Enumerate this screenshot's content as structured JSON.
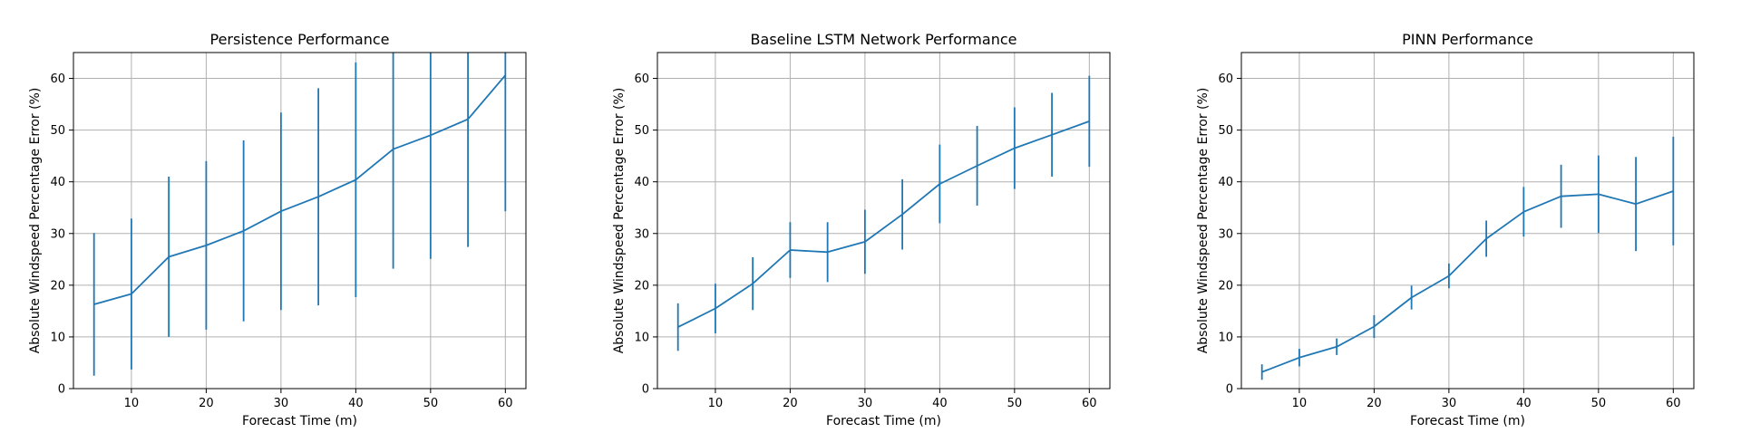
{
  "chart_data": [
    {
      "type": "line",
      "title": "Persistence Performance",
      "xlabel": "Forecast Time (m)",
      "ylabel": "Absolute Windspeed Percentage Error (%)",
      "xlim": [
        2.25,
        62.75
      ],
      "ylim": [
        0,
        65
      ],
      "xticks": [
        10,
        20,
        30,
        40,
        50,
        60
      ],
      "yticks": [
        0,
        10,
        20,
        30,
        40,
        50,
        60
      ],
      "grid": true,
      "x": [
        5,
        10,
        15,
        20,
        25,
        30,
        35,
        40,
        45,
        50,
        55,
        60
      ],
      "y": [
        16.3,
        18.3,
        25.5,
        27.7,
        30.5,
        34.3,
        37.1,
        40.4,
        46.3,
        49.0,
        52.1,
        60.6
      ],
      "yerr": [
        13.8,
        14.6,
        15.5,
        16.3,
        17.5,
        19.1,
        21.0,
        22.7,
        23.1,
        23.9,
        24.7,
        26.3
      ]
    },
    {
      "type": "line",
      "title": "Baseline LSTM Network Performance",
      "xlabel": "Forecast Time (m)",
      "ylabel": "Absolute Windspeed Percentage Error (%)",
      "xlim": [
        2.25,
        62.75
      ],
      "ylim": [
        0,
        65
      ],
      "xticks": [
        10,
        20,
        30,
        40,
        50,
        60
      ],
      "yticks": [
        0,
        10,
        20,
        30,
        40,
        50,
        60
      ],
      "grid": true,
      "x": [
        5,
        10,
        15,
        20,
        25,
        30,
        35,
        40,
        45,
        50,
        55,
        60
      ],
      "y": [
        11.9,
        15.5,
        20.3,
        26.8,
        26.4,
        28.4,
        33.7,
        39.6,
        43.1,
        46.5,
        49.1,
        51.7
      ],
      "yerr": [
        4.6,
        4.8,
        5.1,
        5.4,
        5.8,
        6.2,
        6.8,
        7.6,
        7.7,
        7.9,
        8.1,
        8.8
      ]
    },
    {
      "type": "line",
      "title": "PINN Performance",
      "xlabel": "Forecast Time (m)",
      "ylabel": "Absolute Windspeed Percentage Error (%)",
      "xlim": [
        2.25,
        62.75
      ],
      "ylim": [
        0,
        65
      ],
      "xticks": [
        10,
        20,
        30,
        40,
        50,
        60
      ],
      "yticks": [
        0,
        10,
        20,
        30,
        40,
        50,
        60
      ],
      "grid": true,
      "x": [
        5,
        10,
        15,
        20,
        25,
        30,
        35,
        40,
        45,
        50,
        55,
        60
      ],
      "y": [
        3.2,
        6.0,
        8.1,
        12.0,
        17.6,
        21.8,
        29.0,
        34.2,
        37.2,
        37.6,
        35.7,
        38.2
      ],
      "yerr": [
        1.5,
        1.7,
        1.6,
        2.2,
        2.3,
        2.4,
        3.5,
        4.8,
        6.1,
        7.5,
        9.1,
        10.5
      ]
    }
  ]
}
